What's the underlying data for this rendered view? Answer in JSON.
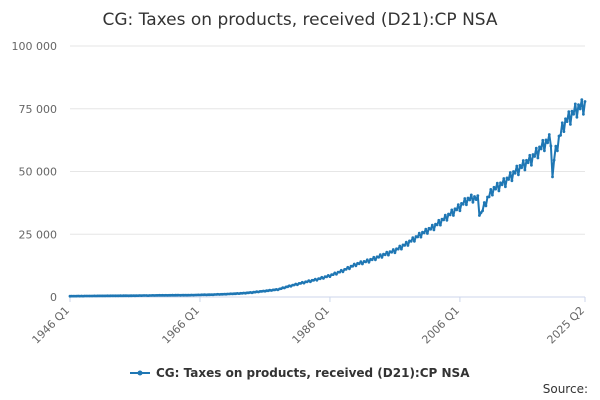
{
  "chart_data": {
    "type": "line",
    "title": "CG: Taxes on products, received (D21):CP NSA",
    "xlabel": "",
    "ylabel": "",
    "ylim": [
      0,
      100000
    ],
    "yticks": [
      {
        "value": 0,
        "label": "0"
      },
      {
        "value": 25000,
        "label": "25 000"
      },
      {
        "value": 50000,
        "label": "50 000"
      },
      {
        "value": 75000,
        "label": "75 000"
      },
      {
        "value": 100000,
        "label": "100 000"
      }
    ],
    "xrange": {
      "start_year": 1946,
      "start_quarter": 1,
      "end_year": 2025,
      "end_quarter": 2
    },
    "xticks": [
      "1946 Q1",
      "1966 Q1",
      "1986 Q1",
      "2006 Q1",
      "2025 Q2"
    ],
    "grid": true,
    "legend_position": "bottom",
    "color": "#1f77b4",
    "anchors": [
      [
        1946,
        350
      ],
      [
        1950,
        420
      ],
      [
        1955,
        520
      ],
      [
        1960,
        650
      ],
      [
        1965,
        780
      ],
      [
        1968,
        950
      ],
      [
        1970,
        1150
      ],
      [
        1972,
        1400
      ],
      [
        1974,
        1800
      ],
      [
        1976,
        2400
      ],
      [
        1978,
        3000
      ],
      [
        1980,
        4500
      ],
      [
        1982,
        5800
      ],
      [
        1984,
        7000
      ],
      [
        1986,
        8500
      ],
      [
        1988,
        10500
      ],
      [
        1990,
        13000
      ],
      [
        1992,
        14500
      ],
      [
        1994,
        16500
      ],
      [
        1996,
        18500
      ],
      [
        1998,
        21500
      ],
      [
        2000,
        25000
      ],
      [
        2002,
        28000
      ],
      [
        2004,
        32000
      ],
      [
        2006,
        36000
      ],
      [
        2007,
        38500
      ],
      [
        2008,
        39500
      ],
      [
        2008.75,
        39000
      ],
      [
        2009.0,
        34000
      ],
      [
        2009.25,
        33000
      ],
      [
        2010,
        38000
      ],
      [
        2011,
        42500
      ],
      [
        2013,
        46000
      ],
      [
        2015,
        51000
      ],
      [
        2017,
        55000
      ],
      [
        2019,
        61000
      ],
      [
        2020.0,
        63000
      ],
      [
        2020.25,
        47000
      ],
      [
        2020.5,
        55000
      ],
      [
        2021,
        61000
      ],
      [
        2022,
        69000
      ],
      [
        2023,
        72000
      ],
      [
        2024,
        75000
      ],
      [
        2025.25,
        76500
      ]
    ],
    "seasonal_amplitude": 0.045,
    "series": [
      {
        "name": "CG: Taxes on products, received (D21):CP NSA"
      }
    ]
  },
  "footer": {
    "source_label": "Source:"
  }
}
